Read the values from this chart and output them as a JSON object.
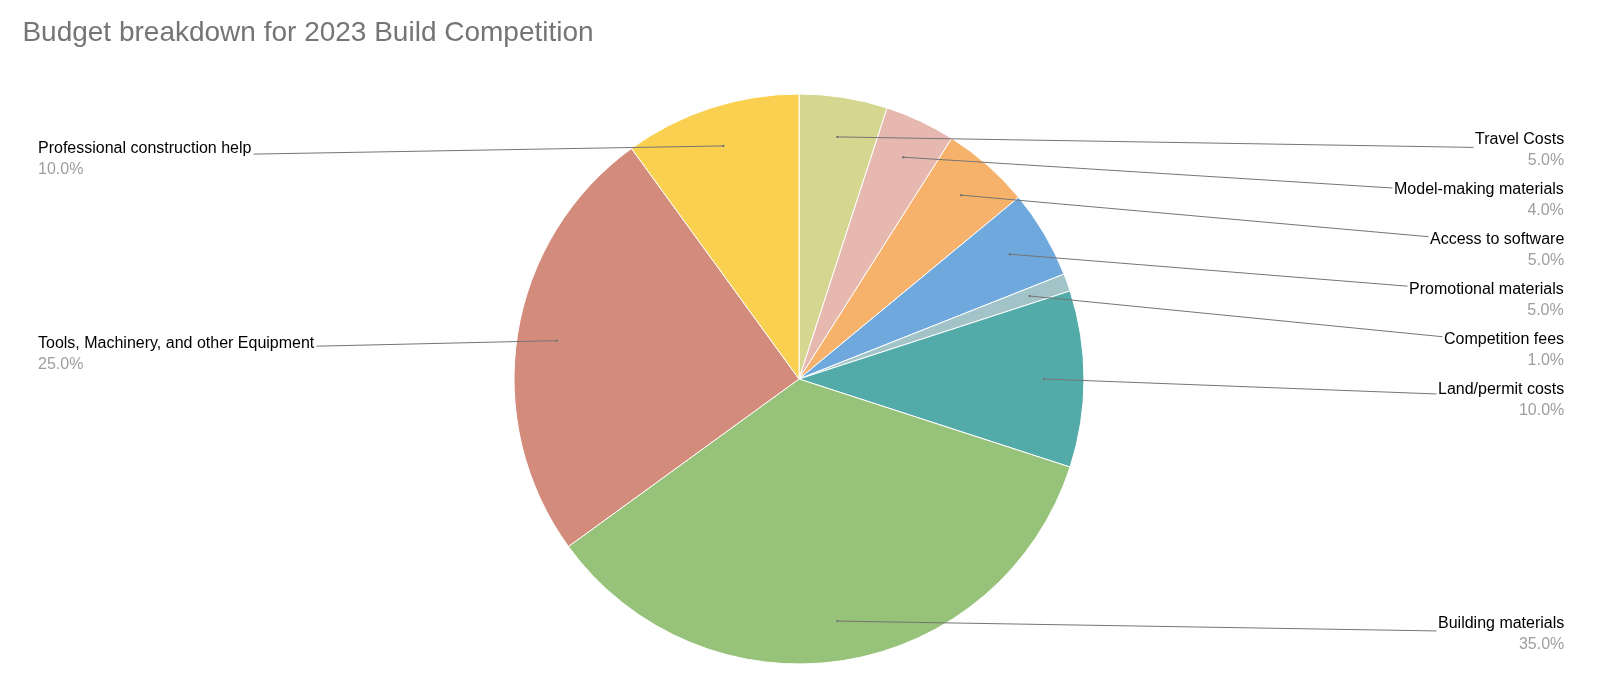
{
  "chart_data": {
    "type": "pie",
    "title": "Budget breakdown for 2023 Build Competition",
    "categories": [
      "Travel Costs",
      "Model-making materials",
      "Access to software",
      "Promotional materials",
      "Competition fees",
      "Land/permit costs",
      "Building materials",
      "Tools, Machinery, and other Equipment",
      "Professional construction help"
    ],
    "values": [
      5,
      4,
      5,
      5,
      1,
      10,
      35,
      25,
      10
    ],
    "colors": [
      "#d5d68f",
      "#e6b8af",
      "#f6b26b",
      "#6fa8dc",
      "#a2c4c9",
      "#52aba9",
      "#97c279",
      "#d38b7b",
      "#fad050"
    ],
    "value_labels": [
      "5.0%",
      "4.0%",
      "5.0%",
      "5.0%",
      "1.0%",
      "10.0%",
      "35.0%",
      "25.0%",
      "10.0%"
    ]
  }
}
